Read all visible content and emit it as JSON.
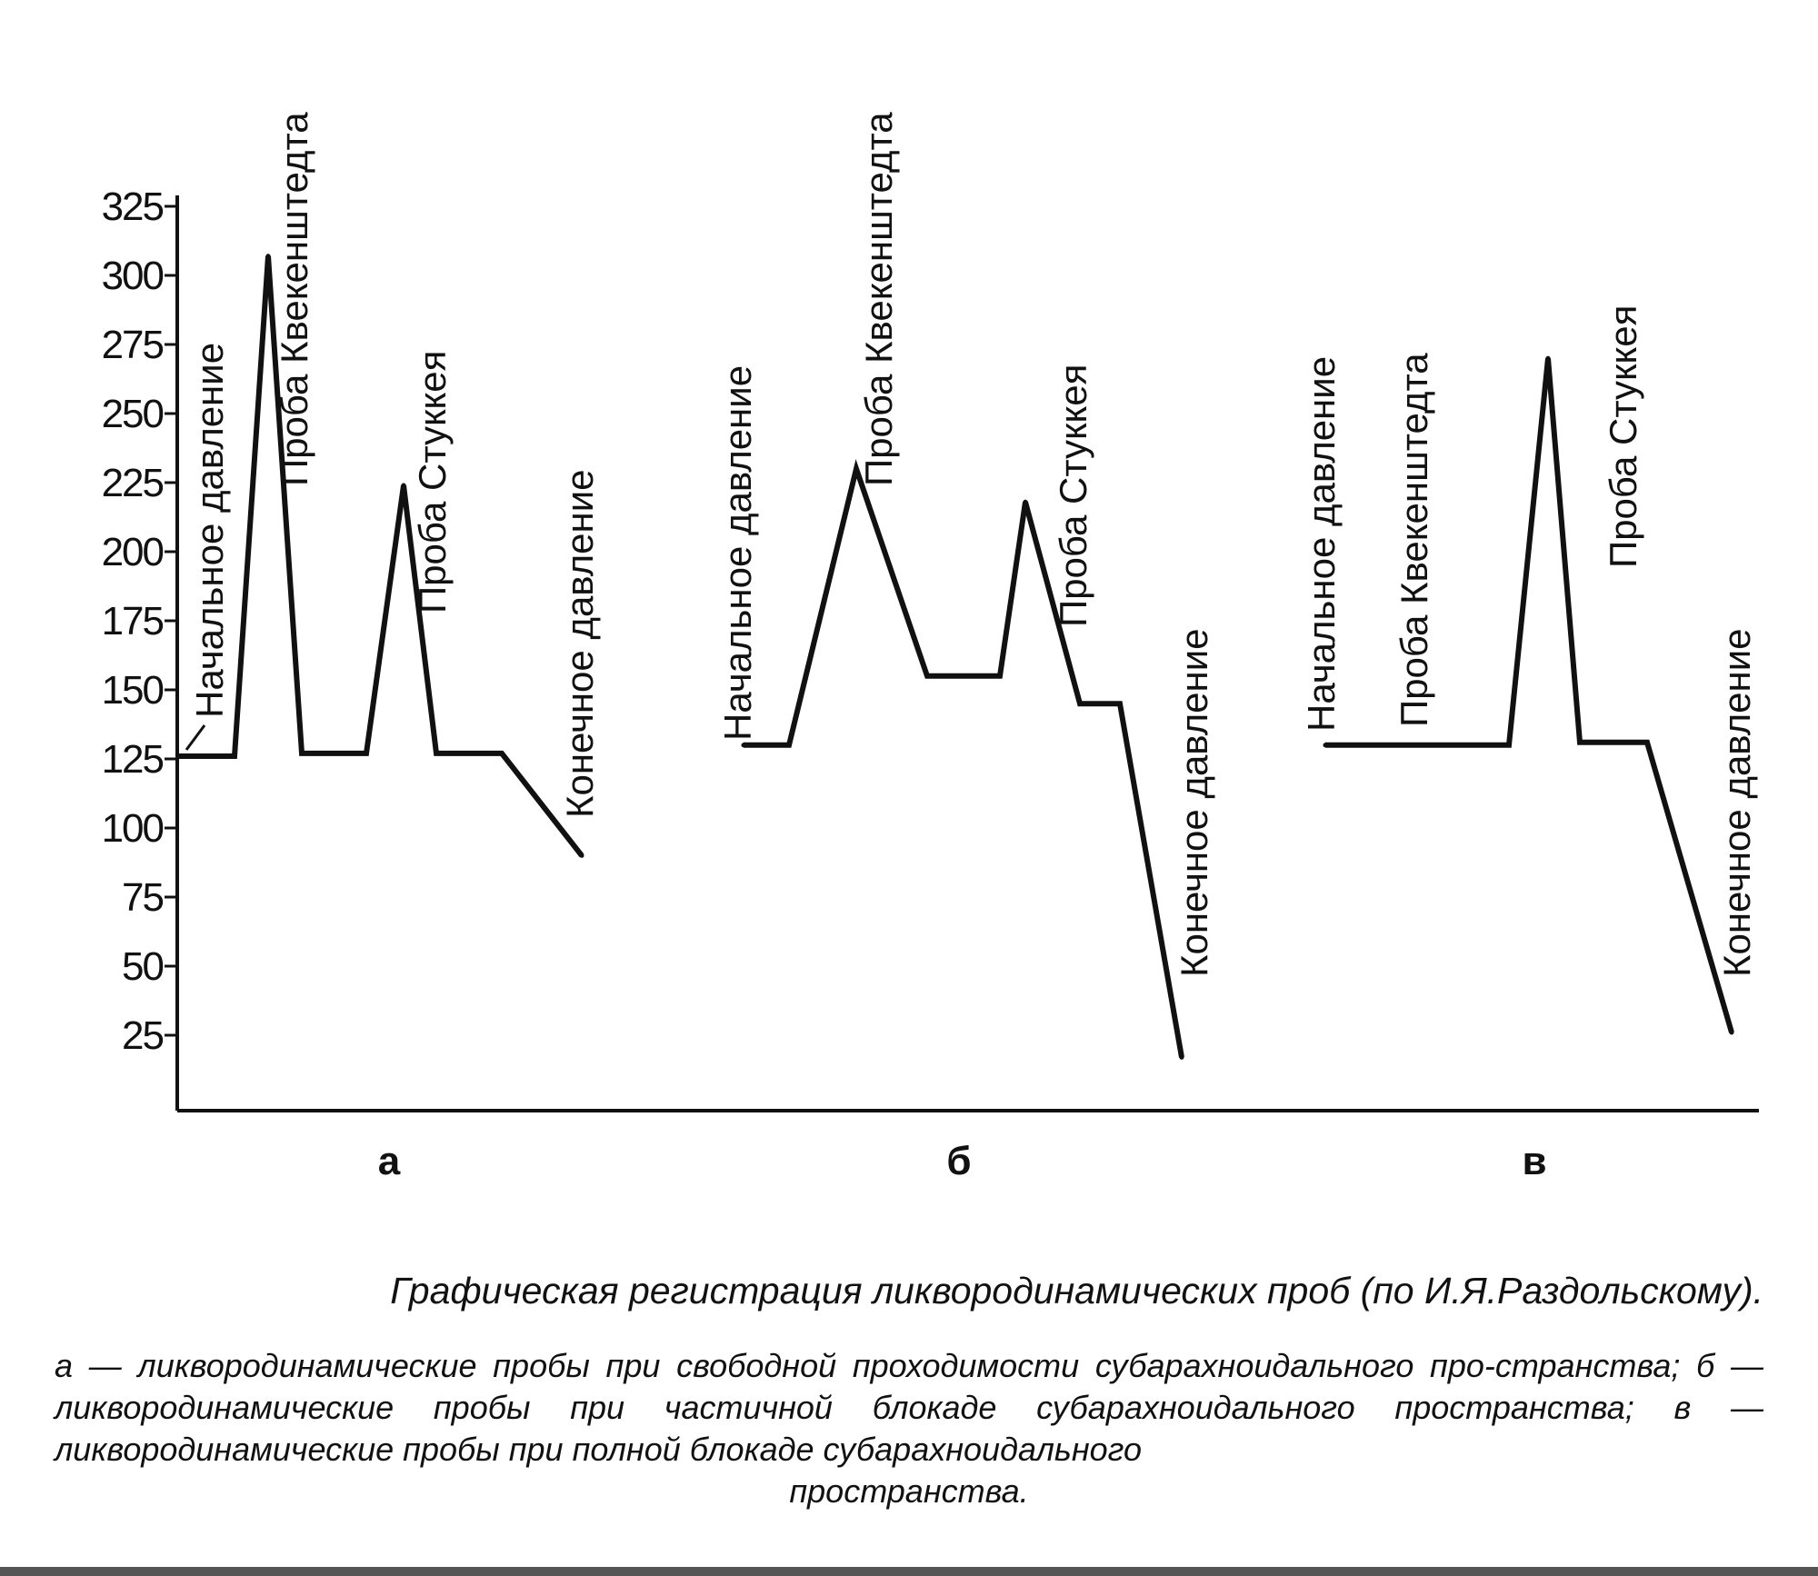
{
  "chart_data": {
    "type": "line",
    "ylim": [
      0,
      325
    ],
    "y_ticks": [
      25,
      50,
      75,
      100,
      125,
      150,
      175,
      200,
      225,
      250,
      275,
      300,
      325
    ],
    "grid": false,
    "legend": "none",
    "panels": [
      {
        "label": "а",
        "points": [
          126,
          126,
          307,
          127,
          127,
          224,
          127,
          127,
          90
        ],
        "annotations": [
          "Начальное давление",
          "Проба Квекенштедта",
          "Проба Стуккея",
          "Конечное давление"
        ]
      },
      {
        "label": "б",
        "points": [
          130,
          130,
          230,
          155,
          155,
          218,
          145,
          145,
          17
        ],
        "annotations": [
          "Начальное давление",
          "Проба Квекенштедта",
          "Проба Стуккея",
          "Конечное давление"
        ]
      },
      {
        "label": "в",
        "points": [
          130,
          130,
          130,
          270,
          131,
          131,
          26
        ],
        "annotations": [
          "Начальное давление",
          "Проба Квекенштедта",
          "Проба Стуккея",
          "Конечное давление"
        ]
      }
    ]
  },
  "caption": {
    "title": "Графическая регистрация ликвородинамических проб (по И.Я.Раздольскому).",
    "body": "а — ликвородинамические пробы при свободной проходимости субарахноидального про-странства; б — ликвородинамические пробы при частичной блокаде субарахноидального пространства; в — ликвородинамические пробы при полной блокаде субарахноидального",
    "last": "пространства."
  },
  "colors": {
    "ink": "#111111",
    "background": "#ffffff",
    "bottom_bar": "#555555"
  }
}
